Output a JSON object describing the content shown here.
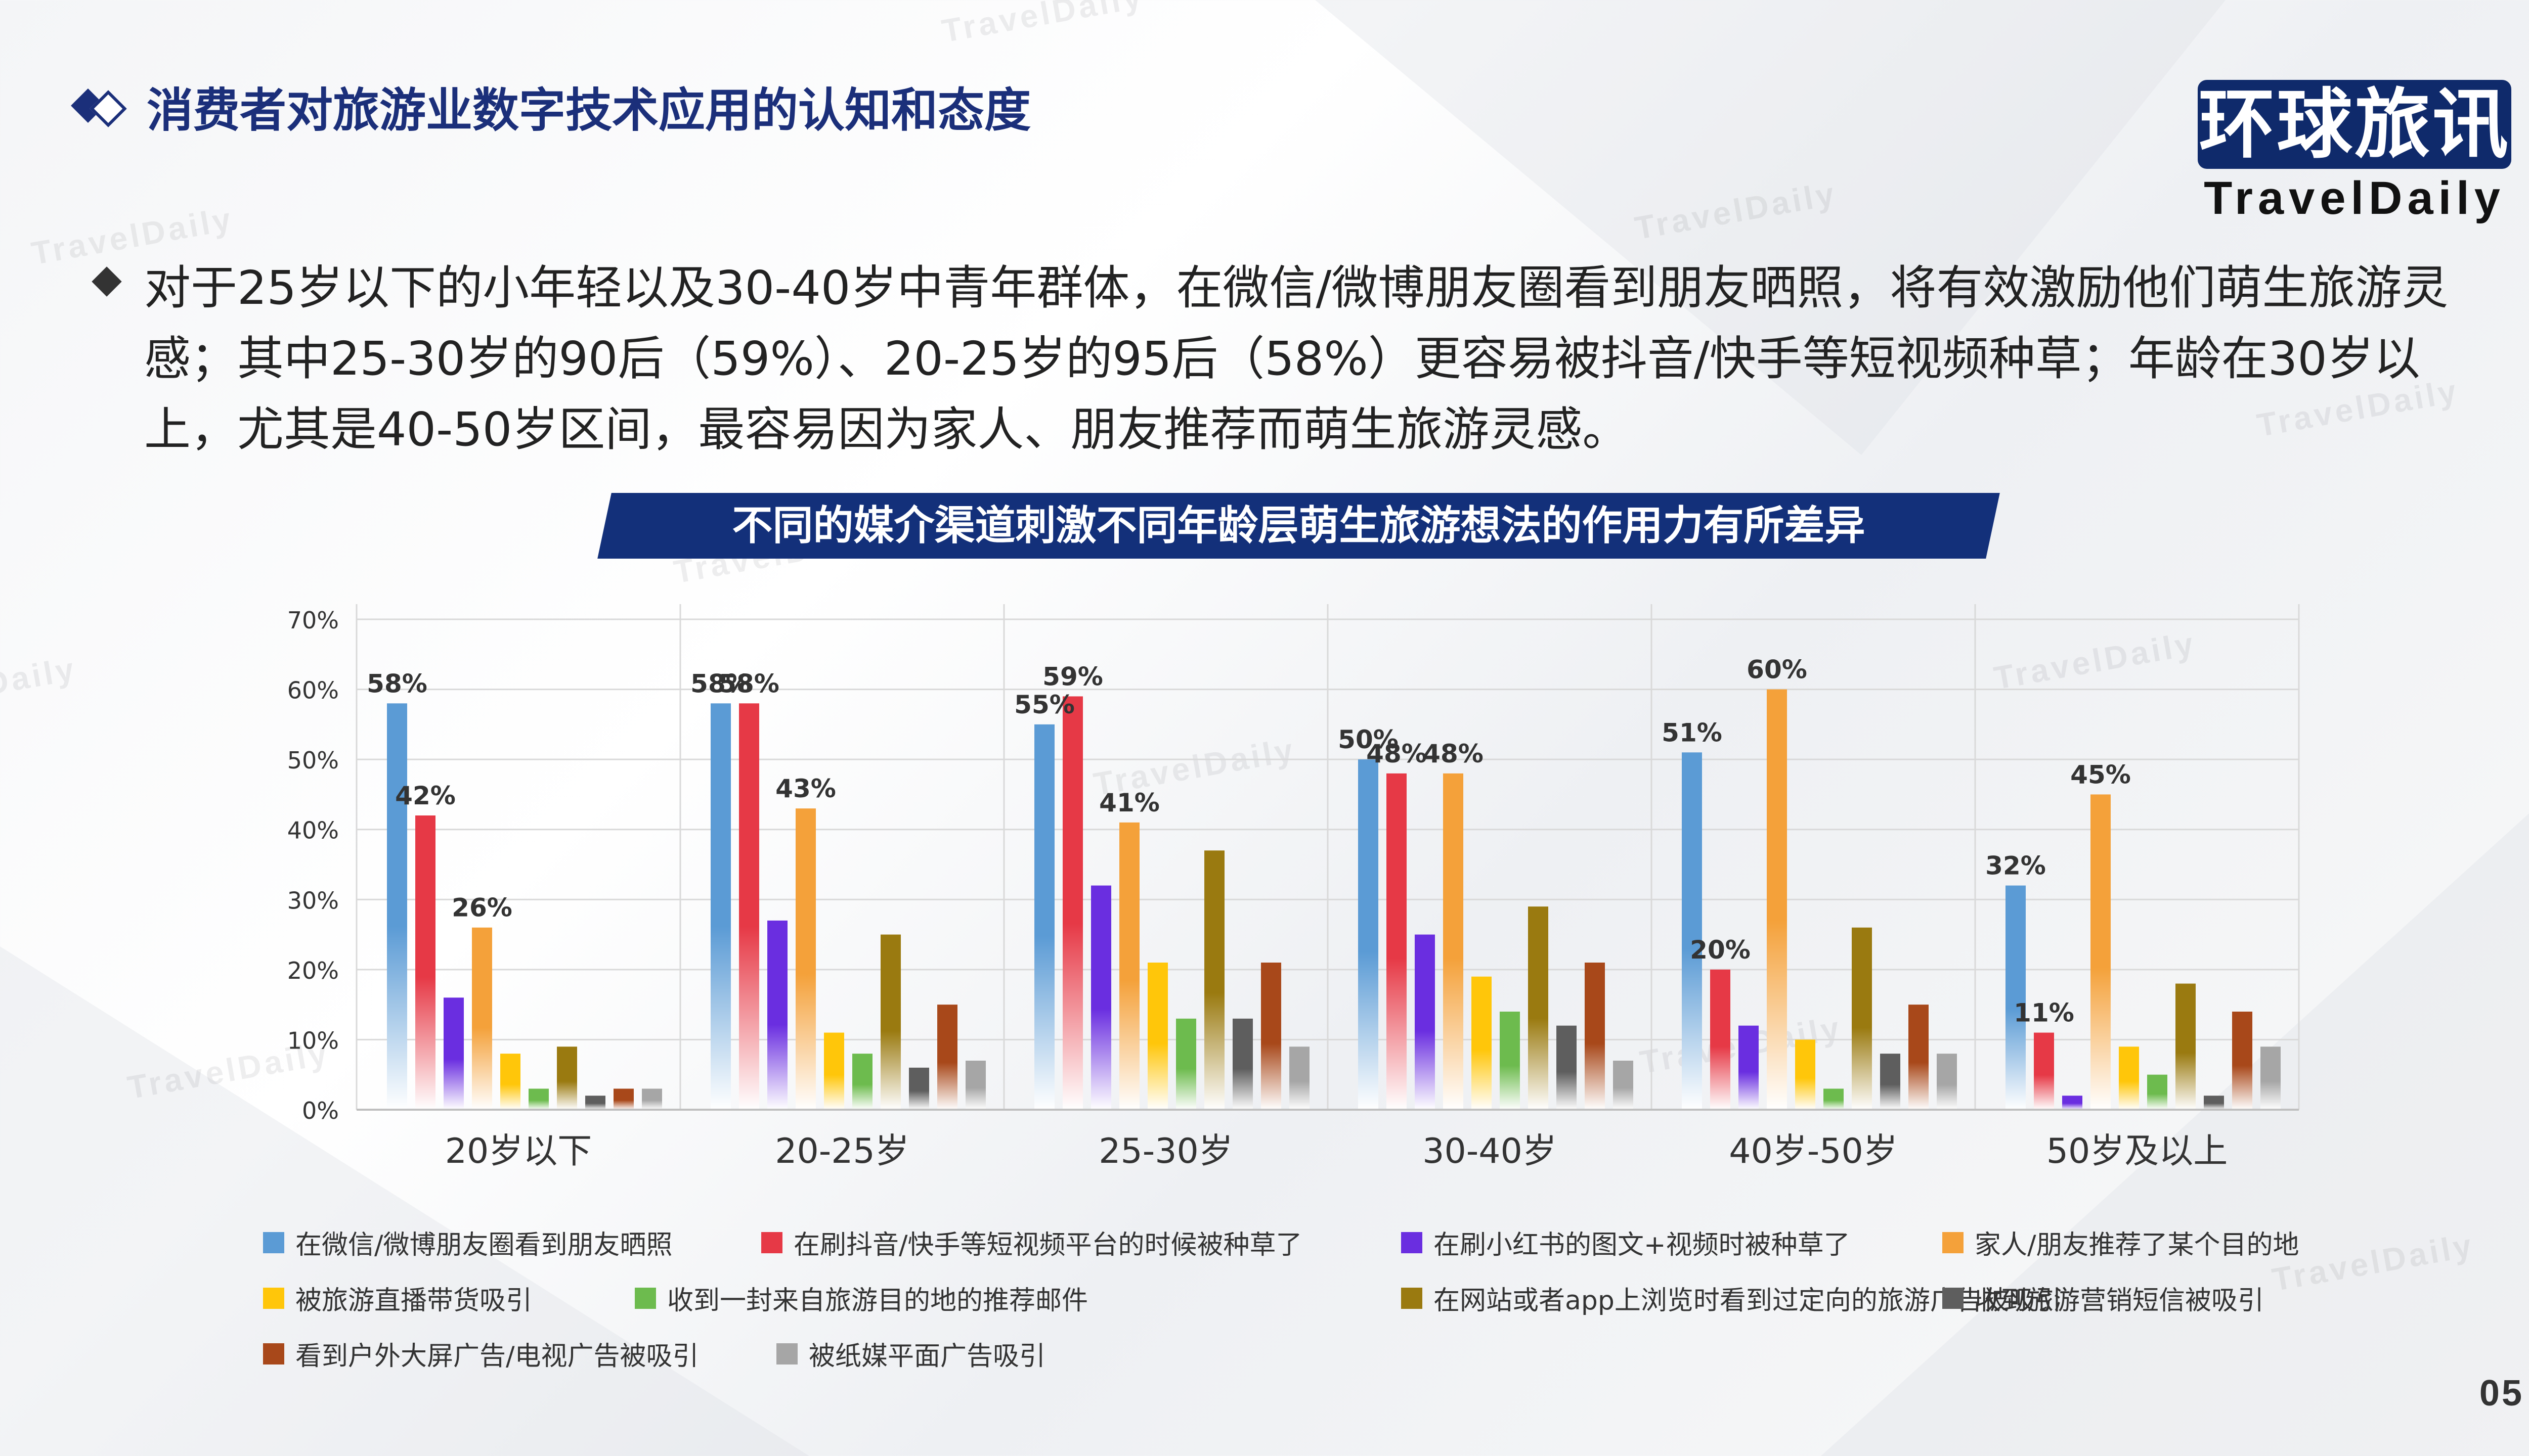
{
  "header": {
    "title": "消费者对旅游业数字技术应用的认知和态度"
  },
  "logo": {
    "cn": "环球旅讯",
    "en": "TravelDaily"
  },
  "watermark": "TravelDaily",
  "summary": {
    "text": "对于25岁以下的小年轻以及30-40岁中青年群体，在微信/微博朋友圈看到朋友晒照，将有效激励他们萌生旅游灵感；其中25-30岁的90后（59%）、20-25岁的95后（58%）更容易被抖音/快手等短视频种草；年龄在30岁以上，尤其是40-50岁区间，最容易因为家人、朋友推荐而萌生旅游灵感。"
  },
  "chart_title": "不同的媒介渠道刺激不同年龄层萌生旅游想法的作用力有所差异",
  "page_number": "05",
  "colors": {
    "accent": "#1b2f7a",
    "series": [
      "#5b9bd5",
      "#e63946",
      "#6a2ee0",
      "#f4a13a",
      "#ffc60a",
      "#6dbb4e",
      "#9a7a10",
      "#5e5e5e",
      "#a8481a",
      "#a6a6a6"
    ]
  },
  "chart_data": {
    "type": "bar",
    "categories": [
      "20岁以下",
      "20-25岁",
      "25-30岁",
      "30-40岁",
      "40岁-50岁",
      "50岁及以上"
    ],
    "ylim": [
      0,
      70
    ],
    "yticks": [
      "0%",
      "10%",
      "20%",
      "30%",
      "40%",
      "50%",
      "60%",
      "70%"
    ],
    "grid": true,
    "legend_position": "bottom",
    "series": [
      {
        "name": "在微信/微博朋友圈看到朋友晒照",
        "values": [
          58,
          58,
          55,
          50,
          51,
          32
        ],
        "labels": [
          "58%",
          "58%",
          "55%",
          "50%",
          "51%",
          "32%"
        ]
      },
      {
        "name": "在刷抖音/快手等短视频平台的时候被种草了",
        "values": [
          42,
          58,
          59,
          48,
          20,
          11
        ],
        "labels": [
          "42%",
          "58%",
          "59%",
          "48%",
          "20%",
          "11%"
        ]
      },
      {
        "name": "在刷小红书的图文+视频时被种草了",
        "values": [
          16,
          27,
          32,
          25,
          12,
          2
        ],
        "labels": [
          "",
          "",
          "",
          "",
          "",
          ""
        ]
      },
      {
        "name": "家人/朋友推荐了某个目的地",
        "values": [
          26,
          43,
          41,
          48,
          60,
          45
        ],
        "labels": [
          "26%",
          "43%",
          "41%",
          "48%",
          "60%",
          "45%"
        ]
      },
      {
        "name": "被旅游直播带货吸引",
        "values": [
          8,
          11,
          21,
          19,
          10,
          9
        ],
        "labels": [
          "",
          "",
          "",
          "",
          "",
          ""
        ]
      },
      {
        "name": "收到一封来自旅游目的地的推荐邮件",
        "values": [
          3,
          8,
          13,
          14,
          3,
          5
        ],
        "labels": [
          "",
          "",
          "",
          "",
          "",
          ""
        ]
      },
      {
        "name": "在网站或者app上浏览时看到过定向的旅游广告被吸引",
        "values": [
          9,
          25,
          37,
          29,
          26,
          18
        ],
        "labels": [
          "",
          "",
          "",
          "",
          "",
          ""
        ]
      },
      {
        "name": "收到旅游营销短信被吸引",
        "values": [
          2,
          6,
          13,
          12,
          8,
          2
        ],
        "labels": [
          "",
          "",
          "",
          "",
          "",
          ""
        ]
      },
      {
        "name": "看到户外大屏广告/电视广告被吸引",
        "values": [
          3,
          15,
          21,
          21,
          15,
          14
        ],
        "labels": [
          "",
          "",
          "",
          "",
          "",
          ""
        ]
      },
      {
        "name": "被纸媒平面广告吸引",
        "values": [
          3,
          7,
          9,
          7,
          8,
          9
        ],
        "labels": [
          "",
          "",
          "",
          "",
          "",
          ""
        ]
      }
    ]
  }
}
